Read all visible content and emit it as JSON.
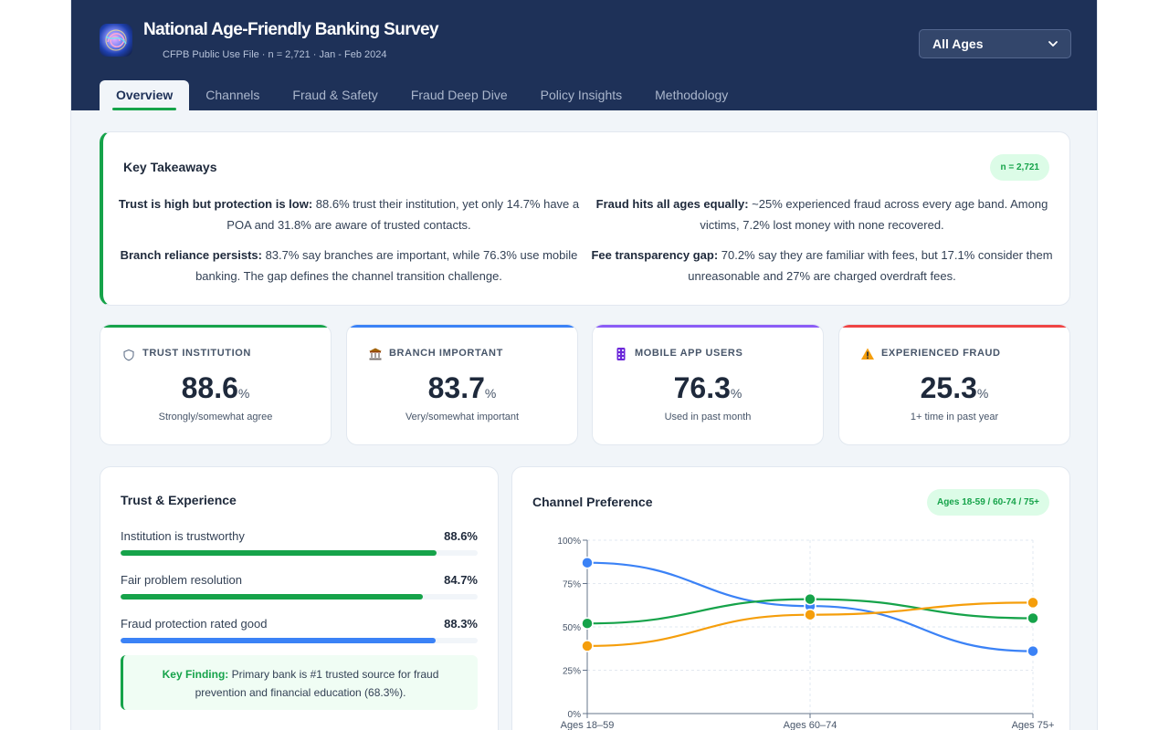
{
  "header": {
    "title": "National Age-Friendly Banking Survey",
    "subtitle": "CFPB Public Use File · n = 2,721 · Jan - Feb 2024",
    "age_filter": "All Ages",
    "tabs": [
      "Overview",
      "Channels",
      "Fraud & Safety",
      "Fraud Deep Dive",
      "Policy Insights",
      "Methodology"
    ]
  },
  "takeaways": {
    "title": "Key Takeaways",
    "badge": "n = 2,721",
    "items": [
      {
        "lead": "Trust is high but protection is low:",
        "text": " 88.6% trust their institution, yet only 14.7% have a POA and 31.8% are aware of trusted contacts."
      },
      {
        "lead": "Fraud hits all ages equally:",
        "text": " ~25% experienced fraud across every age band. Among victims, 7.2% lost money with none recovered."
      },
      {
        "lead": "Branch reliance persists:",
        "text": " 83.7% say branches are important, while 76.3% use mobile banking. The gap defines the channel transition challenge."
      },
      {
        "lead": "Fee transparency gap:",
        "text": " 70.2% say they are familiar with fees, but 17.1% consider them unreasonable and 27% are charged overdraft fees."
      }
    ]
  },
  "kpis": [
    {
      "label": "TRUST INSTITUTION",
      "value": "88.6",
      "unit": "%",
      "caption": "Strongly/somewhat agree",
      "color": "#16a34a",
      "icon": "shield-icon"
    },
    {
      "label": "BRANCH IMPORTANT",
      "value": "83.7",
      "unit": "%",
      "caption": "Very/somewhat important",
      "color": "#3b82f6",
      "icon": "bank-icon"
    },
    {
      "label": "MOBILE APP USERS",
      "value": "76.3",
      "unit": "%",
      "caption": "Used in past month",
      "color": "#8b5cf6",
      "icon": "phone-icon"
    },
    {
      "label": "EXPERIENCED FRAUD",
      "value": "25.3",
      "unit": "%",
      "caption": "1+ time in past year",
      "color": "#ef4444",
      "icon": "warning-icon"
    }
  ],
  "trust": {
    "title": "Trust & Experience",
    "metrics": [
      {
        "label": "Institution is trustworthy",
        "value": "88.6%",
        "pct": 88.6,
        "color": "#16a34a"
      },
      {
        "label": "Fair problem resolution",
        "value": "84.7%",
        "pct": 84.7,
        "color": "#16a34a"
      },
      {
        "label": "Fraud protection rated good",
        "value": "88.3%",
        "pct": 88.3,
        "color": "#3b82f6"
      }
    ],
    "finding_lead": "Key Finding:",
    "finding_text": " Primary bank is #1 trusted source for fraud prevention and financial education (68.3%)."
  },
  "channel": {
    "title": "Channel Preference",
    "badge": "Ages 18-59 / 60-74 / 75+"
  },
  "chart_data": {
    "type": "line",
    "title": "Channel Preference",
    "categories": [
      "Ages 18–59",
      "Ages 60–74",
      "Ages 75+"
    ],
    "y_ticks": [
      "0%",
      "25%",
      "50%",
      "75%",
      "100%"
    ],
    "ylim": [
      0,
      100
    ],
    "grid": true,
    "series": [
      {
        "color": "#3b82f6",
        "values": [
          87,
          62,
          36
        ]
      },
      {
        "color": "#16a34a",
        "values": [
          52,
          66,
          55
        ]
      },
      {
        "color": "#f59e0b",
        "values": [
          39,
          57,
          64
        ]
      }
    ]
  }
}
